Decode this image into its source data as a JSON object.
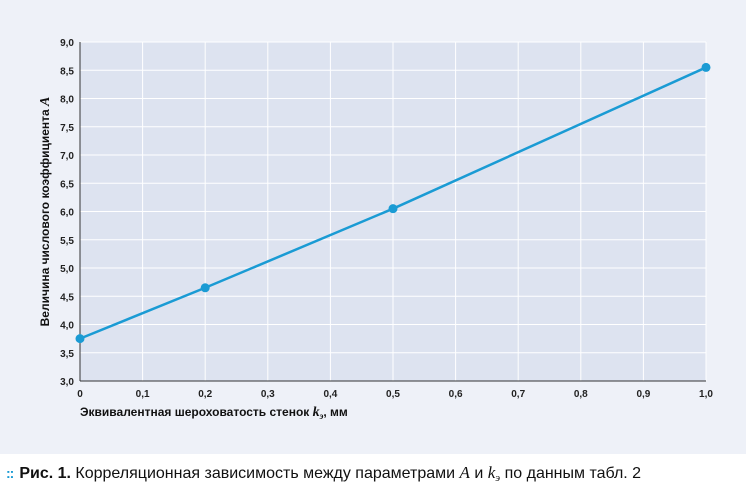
{
  "chart_data": {
    "type": "line",
    "x": [
      0,
      0.2,
      0.5,
      1.0
    ],
    "series": [
      {
        "values": [
          3.75,
          4.65,
          6.05,
          8.55
        ],
        "color": "#1a9bd4"
      }
    ],
    "xlim": [
      0,
      1.0
    ],
    "ylim": [
      3.0,
      9.0
    ],
    "x_ticks": [
      "0",
      "0,1",
      "0,2",
      "0,3",
      "0,4",
      "0,5",
      "0,6",
      "0,7",
      "0,8",
      "0,9",
      "1,0"
    ],
    "y_ticks": [
      "3,0",
      "3,5",
      "4,0",
      "4,5",
      "5,0",
      "5,5",
      "6,0",
      "6,5",
      "7,0",
      "7,5",
      "8,0",
      "8,5",
      "9,0"
    ],
    "xlabel": {
      "prefix": "Эквивалентная шероховатость стенок ",
      "var": "k",
      "sub": "э",
      "suffix": ", мм"
    },
    "ylabel": {
      "prefix": "Величина числового коэффициента ",
      "var": "A"
    },
    "grid": true,
    "background": "#eef1f8",
    "gridline_color": "#ffffff"
  },
  "caption": {
    "bullet": "::",
    "fig_label": "Рис. 1.",
    "text1": " Корреляционная зависимость между параметрами ",
    "var_a": "A",
    "text2": " и ",
    "var_k": "k",
    "sub_k": "э",
    "text3": " по данным табл. 2"
  }
}
